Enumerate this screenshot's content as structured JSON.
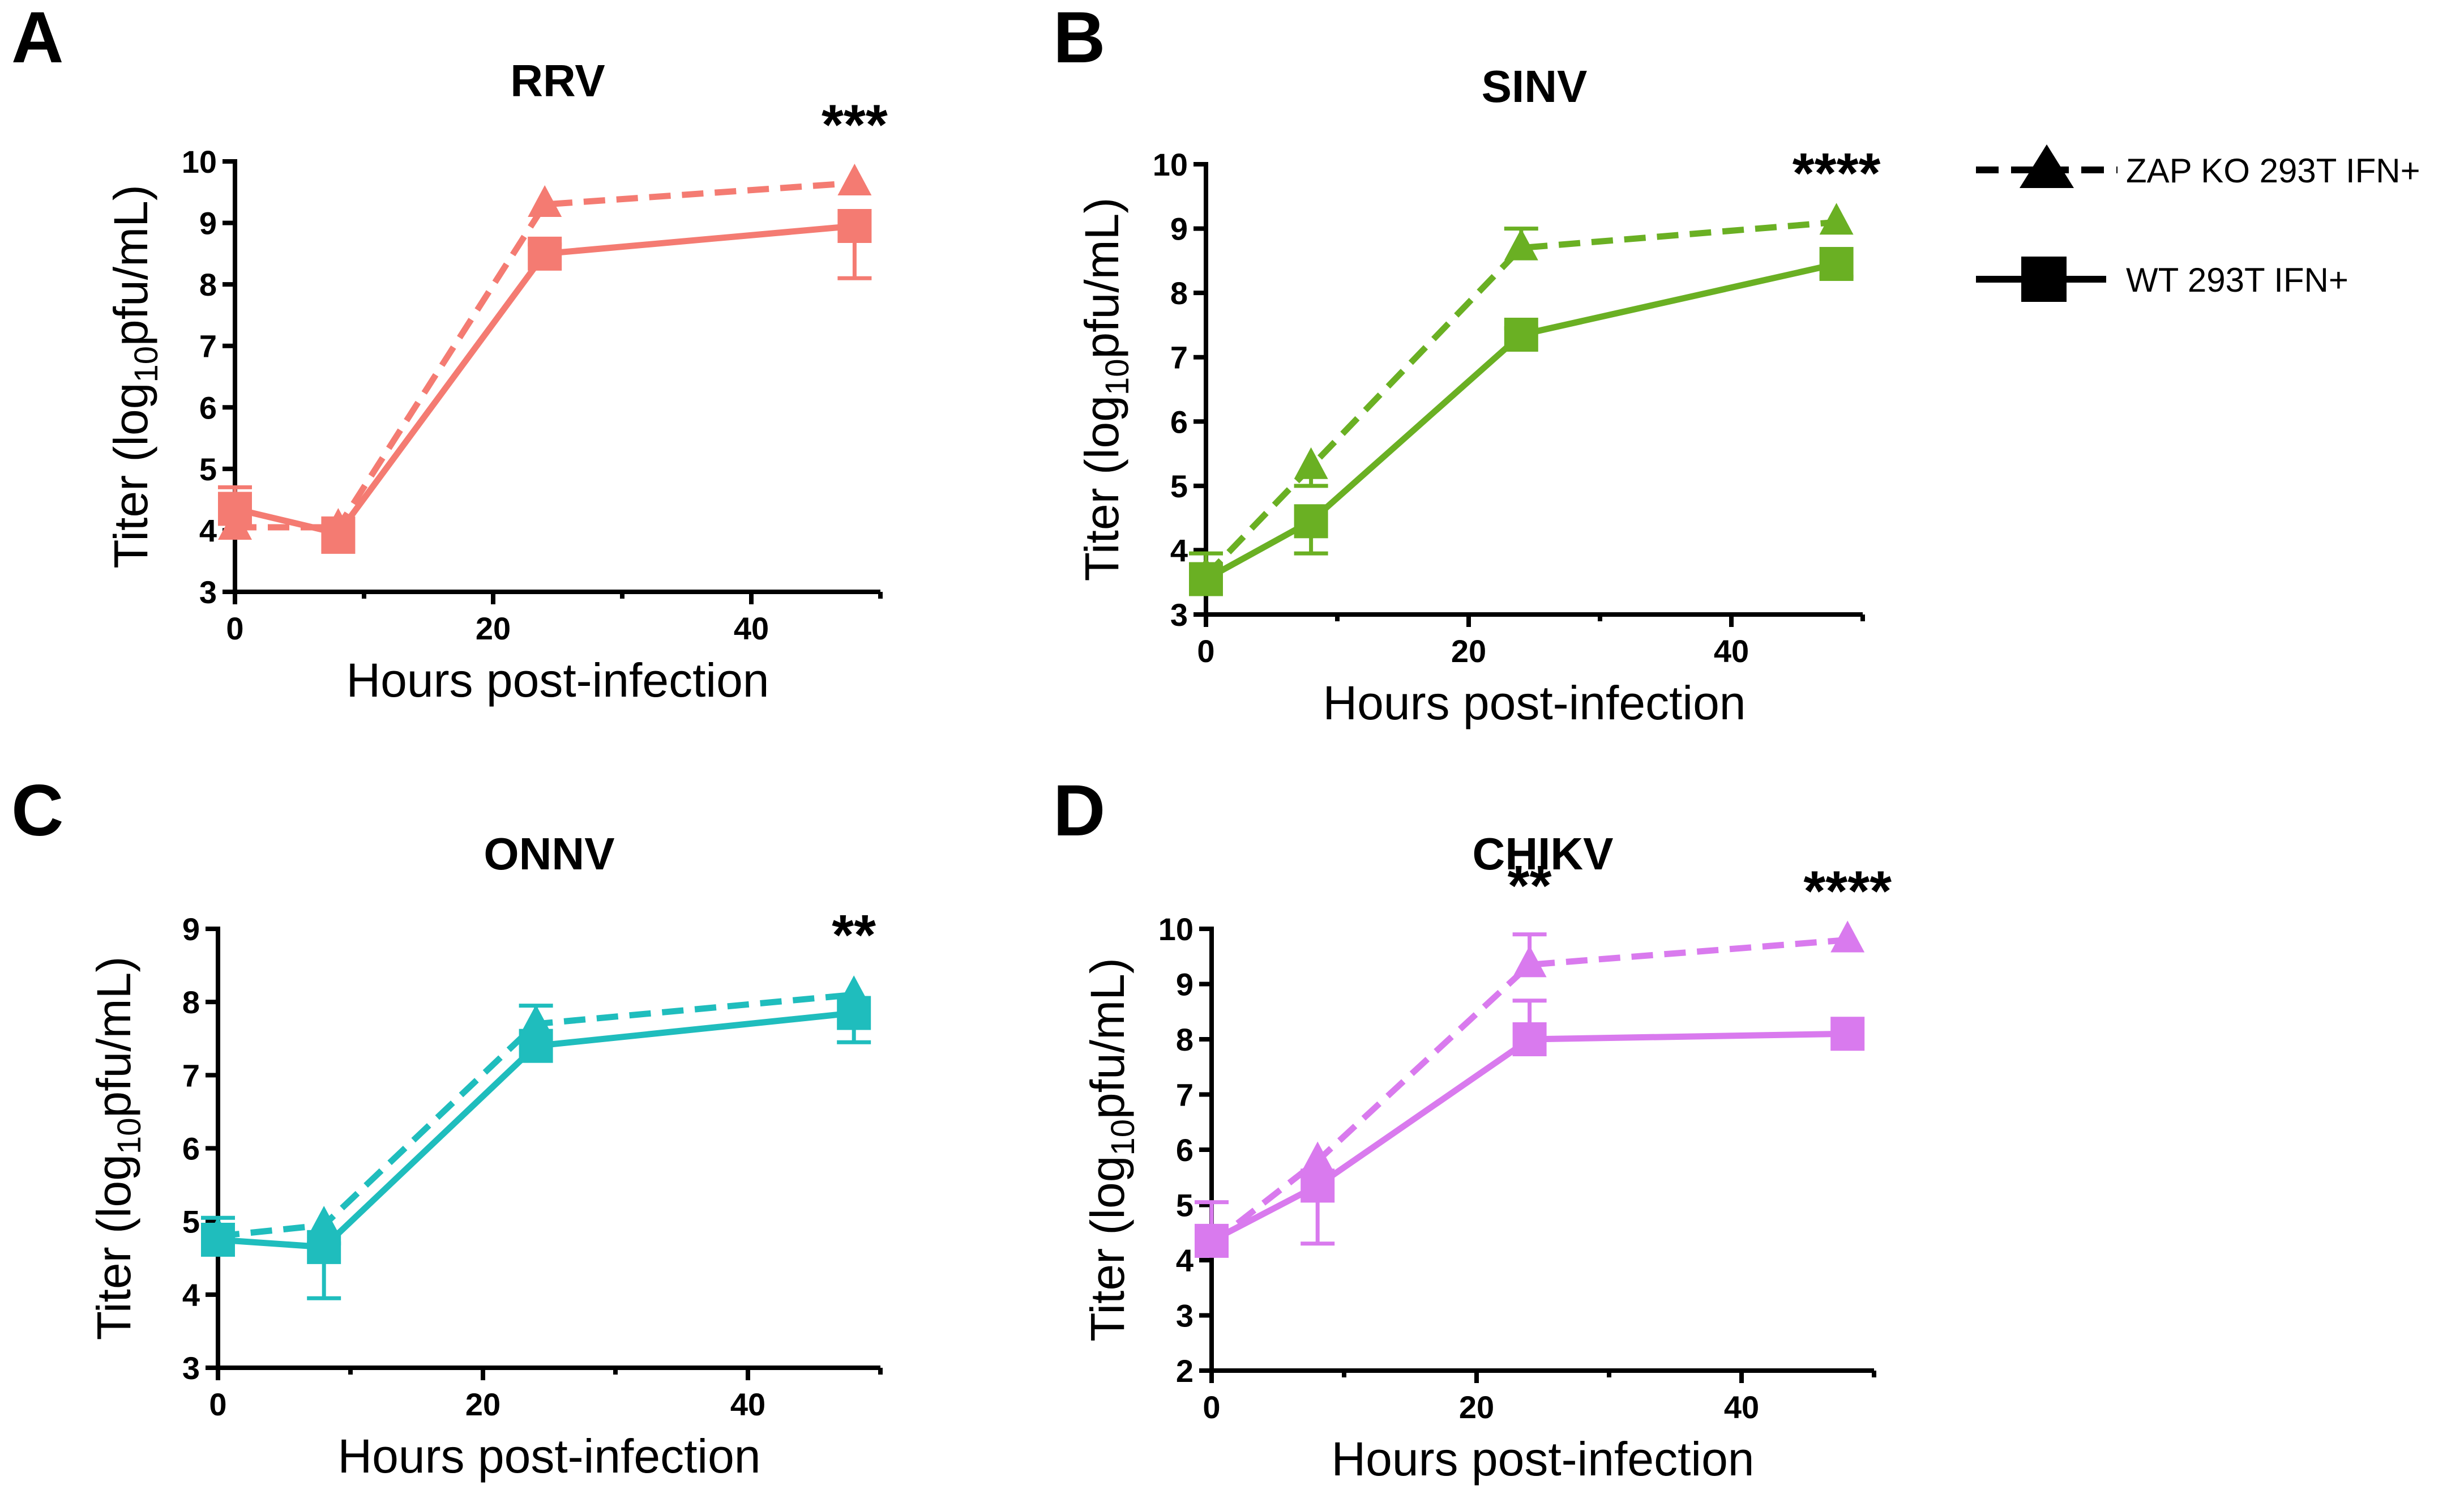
{
  "legend": {
    "entries": [
      {
        "name": "ZAP KO 293T IFN+",
        "marker": "triangle",
        "line": "dashed"
      },
      {
        "name": "WT 293T IFN+",
        "marker": "square",
        "line": "solid"
      }
    ]
  },
  "chart_data": [
    {
      "panel": "A",
      "type": "line",
      "title": "RRV",
      "color": "#F47B72",
      "xlabel": "Hours post-infection",
      "ylabel_parts": [
        "Titer (log",
        "10",
        "pfu/mL)"
      ],
      "xlim": [
        0,
        50
      ],
      "ylim": [
        3,
        10
      ],
      "xticks": [
        0,
        20,
        40
      ],
      "yticks": [
        3,
        4,
        5,
        6,
        7,
        8,
        9,
        10
      ],
      "x": [
        0,
        8,
        24,
        48
      ],
      "series": [
        {
          "name": "ZAP KO 293T IFN+",
          "values": [
            4.05,
            4.05,
            9.3,
            9.65
          ],
          "err": [
            0,
            0.4,
            0,
            0
          ]
        },
        {
          "name": "WT 293T IFN+",
          "values": [
            4.35,
            3.95,
            8.5,
            8.95
          ],
          "err": [
            0.35,
            0,
            0.15,
            0.85
          ]
        }
      ],
      "annotations": [
        {
          "x": 48,
          "text": "***"
        }
      ]
    },
    {
      "panel": "B",
      "type": "line",
      "title": "SINV",
      "color": "#6AB023",
      "xlabel": "Hours post-infection",
      "ylabel_parts": [
        "Titer (log",
        "10",
        "pfu/mL)"
      ],
      "xlim": [
        0,
        50
      ],
      "ylim": [
        3,
        10
      ],
      "xticks": [
        0,
        20,
        40
      ],
      "yticks": [
        3,
        4,
        5,
        6,
        7,
        8,
        9,
        10
      ],
      "x": [
        0,
        8,
        24,
        48
      ],
      "series": [
        {
          "name": "ZAP KO 293T IFN+",
          "values": [
            3.6,
            5.3,
            8.7,
            9.1
          ],
          "err": [
            0,
            0.3,
            0.3,
            0
          ]
        },
        {
          "name": "WT 293T IFN+",
          "values": [
            3.55,
            4.45,
            7.35,
            8.45
          ],
          "err": [
            0.4,
            0.5,
            0.1,
            0.2
          ]
        }
      ],
      "annotations": [
        {
          "x": 48,
          "text": "****"
        }
      ]
    },
    {
      "panel": "C",
      "type": "line",
      "title": "ONNV",
      "color": "#1FBDBD",
      "xlabel": "Hours post-infection",
      "ylabel_parts": [
        "Titer (log",
        "10",
        "pfu/mL)"
      ],
      "xlim": [
        0,
        50
      ],
      "ylim": [
        3,
        9
      ],
      "xticks": [
        0,
        20,
        40
      ],
      "yticks": [
        3,
        4,
        5,
        6,
        7,
        8,
        9
      ],
      "x": [
        0,
        8,
        24,
        48
      ],
      "series": [
        {
          "name": "ZAP KO 293T IFN+",
          "values": [
            4.8,
            4.95,
            7.7,
            8.1
          ],
          "err": [
            0,
            0.25,
            0,
            0
          ]
        },
        {
          "name": "WT 293T IFN+",
          "values": [
            4.75,
            4.65,
            7.4,
            7.85
          ],
          "err": [
            0.3,
            0.7,
            0.55,
            0.4
          ]
        }
      ],
      "annotations": [
        {
          "x": 48,
          "text": "**"
        }
      ]
    },
    {
      "panel": "D",
      "type": "line",
      "title": "CHIKV",
      "color": "#D97AEE",
      "xlabel": "Hours post-infection",
      "ylabel_parts": [
        "Titer (log",
        "10",
        "pfu/mL)"
      ],
      "xlim": [
        0,
        50
      ],
      "ylim": [
        2,
        10
      ],
      "xticks": [
        0,
        20,
        40
      ],
      "yticks": [
        2,
        3,
        4,
        5,
        6,
        7,
        8,
        9,
        10
      ],
      "x": [
        0,
        8,
        24,
        48
      ],
      "series": [
        {
          "name": "ZAP KO 293T IFN+",
          "values": [
            4.3,
            5.8,
            9.35,
            9.8
          ],
          "err": [
            0,
            0,
            0.55,
            0
          ]
        },
        {
          "name": "WT 293T IFN+",
          "values": [
            4.35,
            5.35,
            8.0,
            8.1
          ],
          "err": [
            0.7,
            1.05,
            0.7,
            0
          ]
        }
      ],
      "annotations": [
        {
          "x": 24,
          "text": "**"
        },
        {
          "x": 48,
          "text": "****"
        }
      ]
    }
  ]
}
